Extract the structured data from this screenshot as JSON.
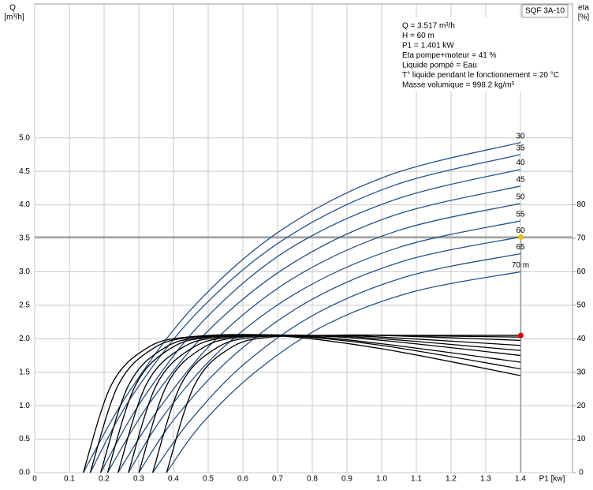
{
  "chart_data": {
    "type": "pump-curve",
    "title": "SQF 3A-10",
    "y_label": "Q",
    "y_unit": "[m³/h]",
    "y2_label": "eta",
    "y2_unit": "[%]",
    "x_label": "P1 [kw]",
    "info": [
      "Q = 3.517 m³/h",
      "H = 60 m",
      "P1 = 1.401 kW",
      "Eta pompe+moteur = 41 %",
      "Liquide pompé = Eau",
      "T° liquide pendant le fonctionnement = 20 °C",
      "Masse volumique = 998.2 kg/m³"
    ],
    "xlim": [
      0,
      1.55
    ],
    "ylim": [
      0,
      7
    ],
    "y2lim": [
      0,
      140
    ],
    "xticks": [
      {
        "value": 0,
        "label": "0"
      },
      0.1,
      0.2,
      0.3,
      0.4,
      0.5,
      0.6,
      0.7,
      0.8,
      0.9,
      {
        "value": 1,
        "label": "1.0"
      },
      1.1,
      1.2,
      1.3,
      1.4
    ],
    "yticks": [
      {
        "value": 0,
        "label": "0.0"
      },
      0.5,
      {
        "value": 1,
        "label": "1.0"
      },
      1.5,
      {
        "value": 2,
        "label": "2.0"
      },
      2.5,
      {
        "value": 3,
        "label": "3.0"
      },
      3.5,
      {
        "value": 4,
        "label": "4.0"
      },
      4.5,
      {
        "value": 5,
        "label": "5.0"
      }
    ],
    "y2ticks": [
      0,
      10,
      20,
      30,
      40,
      50,
      60,
      70,
      80
    ],
    "grid": true,
    "series": [
      {
        "name": "30",
        "color": "#24538a",
        "x": [
          0.14,
          0.27,
          0.46,
          0.71,
          1.02,
          1.4
        ],
        "values": [
          0,
          1.19,
          2.49,
          3.62,
          4.44,
          4.93
        ]
      },
      {
        "name": "35",
        "color": "#24538a",
        "x": [
          0.16,
          0.28,
          0.47,
          0.72,
          1.03,
          1.4
        ],
        "values": [
          0,
          1.14,
          2.4,
          3.49,
          4.28,
          4.75
        ]
      },
      {
        "name": "40",
        "color": "#24538a",
        "x": [
          0.19,
          0.31,
          0.49,
          0.73,
          1.04,
          1.4
        ],
        "values": [
          0,
          1.09,
          2.29,
          3.33,
          4.08,
          4.53
        ]
      },
      {
        "name": "45",
        "color": "#24538a",
        "x": [
          0.21,
          0.33,
          0.51,
          0.75,
          1.04,
          1.4
        ],
        "values": [
          0,
          1.03,
          2.17,
          3.15,
          3.85,
          4.28
        ]
      },
      {
        "name": "50",
        "color": "#24538a",
        "x": [
          0.24,
          0.36,
          0.53,
          0.76,
          1.05,
          1.4
        ],
        "values": [
          0,
          0.97,
          2.03,
          2.95,
          3.62,
          4.02
        ]
      },
      {
        "name": "55",
        "color": "#24538a",
        "x": [
          0.27,
          0.38,
          0.55,
          0.78,
          1.06,
          1.4
        ],
        "values": [
          0,
          0.91,
          1.9,
          2.76,
          3.38,
          3.76
        ]
      },
      {
        "name": "60",
        "color": "#24538a",
        "x": [
          0.3,
          0.41,
          0.58,
          0.8,
          1.07,
          1.4
        ],
        "values": [
          0,
          0.85,
          1.78,
          2.59,
          3.17,
          3.52
        ]
      },
      {
        "name": "65",
        "color": "#24538a",
        "x": [
          0.34,
          0.45,
          0.61,
          0.82,
          1.08,
          1.4
        ],
        "values": [
          0,
          0.79,
          1.65,
          2.4,
          2.94,
          3.27
        ]
      },
      {
        "name": "70 m",
        "color": "#24538a",
        "x": [
          0.38,
          0.48,
          0.64,
          0.84,
          1.09,
          1.4
        ],
        "values": [
          0,
          0.72,
          1.52,
          2.21,
          2.7,
          3.0
        ]
      },
      {
        "color": "#000000",
        "axis": "y2",
        "x": [
          0.14,
          0.22,
          0.32,
          0.44,
          0.69,
          1.0,
          1.4
        ],
        "values": [
          0,
          26,
          37,
          40.5,
          41,
          37,
          29
        ]
      },
      {
        "color": "#000000",
        "axis": "y2",
        "x": [
          0.16,
          0.24,
          0.34,
          0.46,
          0.71,
          1.0,
          1.4
        ],
        "values": [
          0,
          26,
          37,
          40.5,
          41,
          38,
          31
        ]
      },
      {
        "color": "#000000",
        "axis": "y2",
        "x": [
          0.19,
          0.27,
          0.37,
          0.49,
          0.74,
          1.0,
          1.4
        ],
        "values": [
          0,
          26,
          37,
          40.5,
          41,
          38.5,
          33
        ]
      },
      {
        "color": "#000000",
        "axis": "y2",
        "x": [
          0.21,
          0.29,
          0.39,
          0.51,
          0.76,
          1.0,
          1.4
        ],
        "values": [
          0,
          26,
          37,
          40.5,
          41,
          39.5,
          35
        ]
      },
      {
        "color": "#000000",
        "axis": "y2",
        "x": [
          0.24,
          0.32,
          0.42,
          0.54,
          0.79,
          1.0,
          1.4
        ],
        "values": [
          0,
          26,
          37,
          40.5,
          41,
          40,
          36.5
        ]
      },
      {
        "color": "#000000",
        "axis": "y2",
        "x": [
          0.27,
          0.35,
          0.45,
          0.57,
          0.82,
          1.0,
          1.4
        ],
        "values": [
          0,
          26,
          37,
          40.5,
          41,
          40.5,
          38
        ]
      },
      {
        "color": "#000000",
        "axis": "y2",
        "x": [
          0.3,
          0.38,
          0.48,
          0.6,
          0.85,
          1.0,
          1.4
        ],
        "values": [
          0,
          26,
          37,
          40.5,
          41,
          41,
          39.5
        ]
      },
      {
        "color": "#000000",
        "axis": "y2",
        "x": [
          0.34,
          0.42,
          0.52,
          0.64,
          0.89,
          1.0,
          1.4
        ],
        "values": [
          0,
          26,
          37,
          40.5,
          41,
          41,
          40.5
        ]
      },
      {
        "color": "#000000",
        "axis": "y2",
        "x": [
          0.38,
          0.46,
          0.56,
          0.68,
          0.93,
          1.1,
          1.4
        ],
        "values": [
          0,
          26,
          37,
          40.5,
          41,
          41,
          41
        ]
      }
    ],
    "duty_point": {
      "x": 1.401,
      "q": 3.517,
      "eta": 41,
      "q_color": "#f5c400",
      "eta_color": "#e00000",
      "line_color": "#999999"
    }
  }
}
